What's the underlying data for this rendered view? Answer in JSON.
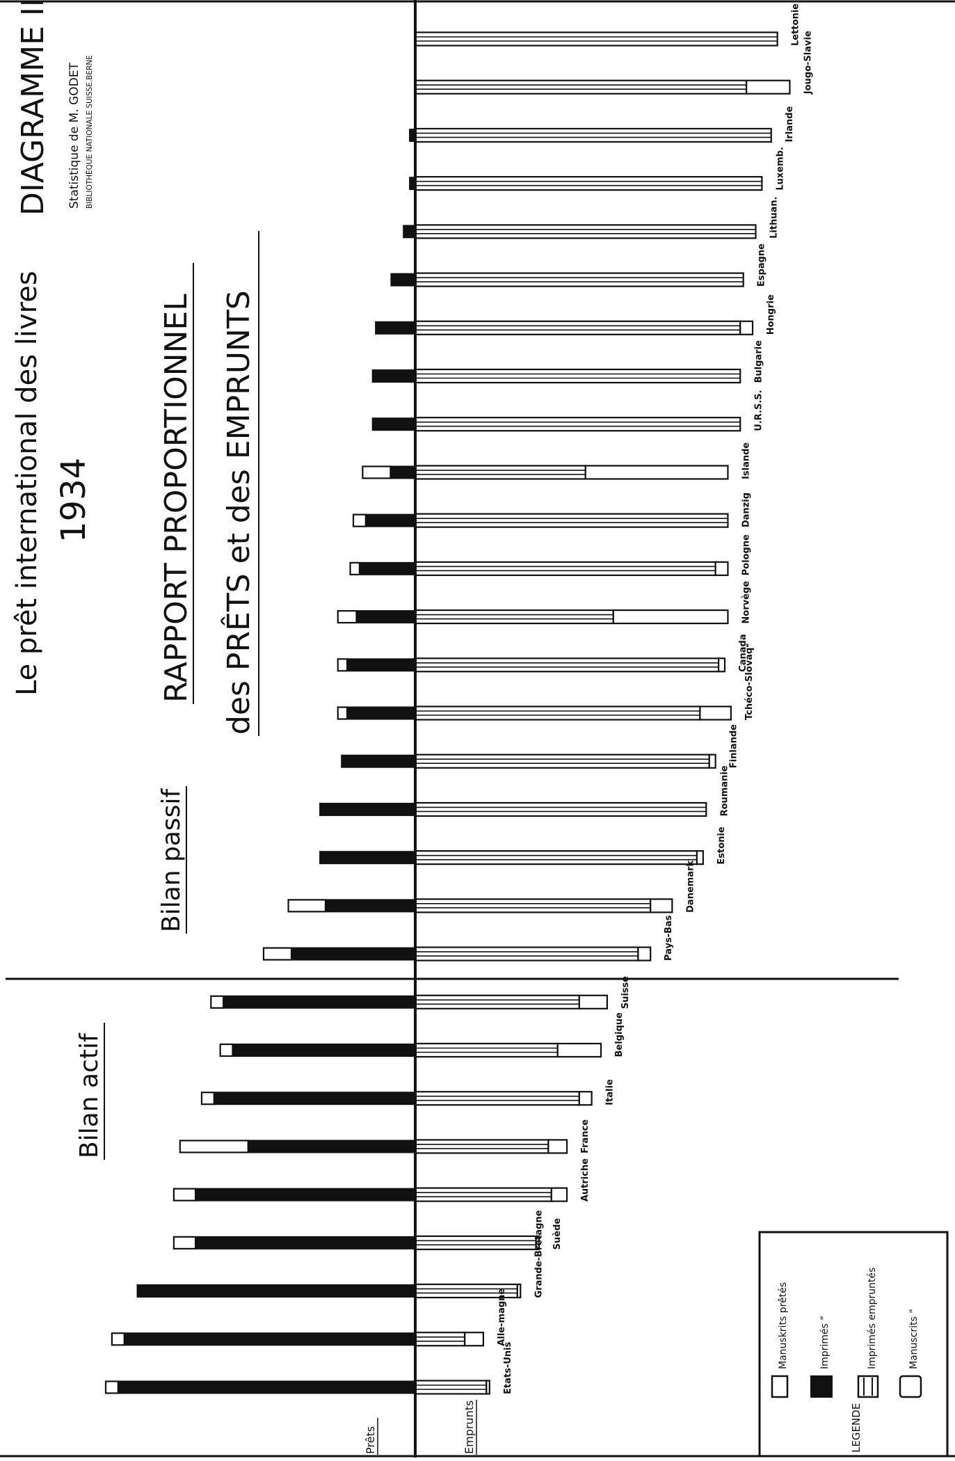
{
  "header": {
    "diagram_label": "DIAGRAMME II",
    "source_line1": "Statistique de M. GODET",
    "source_line2": "BIBLIOTHÈQUE NATIONALE SUISSE.BERNE",
    "title_line1": "Le prêt international des livres",
    "title_year": "1934",
    "subtitle_line1": "RAPPORT PROPORTIONNEL",
    "subtitle_line2": "des PRÊTS et des EMPRUNTS"
  },
  "sections": {
    "active": "Bilan actif",
    "passive": "Bilan passif"
  },
  "axis_labels": {
    "loans": "Prêts",
    "borrowings": "Emprunts"
  },
  "legend": {
    "title": "LEGENDE",
    "items": [
      "Manuskrits prêtés",
      "Imprimés \"",
      "Imprimés empruntés",
      "Manuscrits \""
    ]
  },
  "chart_data": {
    "type": "bar",
    "orientation": "diverging",
    "left_direction": "Prêts",
    "right_direction": "Emprunts",
    "units": "relative proportion (%)",
    "categories": [
      "Etats-Unis",
      "Allemagne",
      "Grande-Bretagne",
      "Suède",
      "Autriche",
      "France",
      "Italie",
      "Belgique",
      "Suisse",
      "Pays-Bas",
      "Danemark",
      "Estonie",
      "Roumanie",
      "Finlande",
      "Tchéco-Slovaquie",
      "Canada",
      "Norvège",
      "Pologne",
      "Danzig",
      "Islande",
      "U.R.S.S.",
      "Bulgarie",
      "Hongrie",
      "Espagne",
      "Lithuanie",
      "Luxembourg",
      "Irlande",
      "Jougo-Slavie",
      "Lettonie"
    ],
    "category_labels": [
      "Etats-Unis",
      "Alle-magne",
      "Grande-Bretagne",
      "Suède",
      "Autriche",
      "France",
      "Italie",
      "Belgique",
      "Suisse",
      "Pays-Bas",
      "Danemark",
      "Estonie",
      "Roumanie",
      "Finlande",
      "Tchéco-Slovaqᵉ",
      "Canada",
      "Norvège",
      "Pologne",
      "Danzig",
      "Islande",
      "U.R.S.S.",
      "Bulgarie",
      "Hongrie",
      "Espagne",
      "Lithuan.",
      "Luxemb.",
      "Irlande",
      "Jougo-Slavie",
      "Lettonie"
    ],
    "groups": [
      {
        "name": "Bilan actif",
        "categories": [
          "Etats-Unis",
          "Allemagne",
          "Grande-Bretagne",
          "Suède",
          "Autriche",
          "France",
          "Italie",
          "Belgique",
          "Suisse"
        ]
      },
      {
        "name": "Bilan passif",
        "categories": [
          "Pays-Bas",
          "Danemark",
          "Estonie",
          "Roumanie",
          "Finlande",
          "Tchéco-Slovaquie",
          "Canada",
          "Norvège",
          "Pologne",
          "Danzig",
          "Islande",
          "U.R.S.S.",
          "Bulgarie",
          "Hongrie",
          "Espagne",
          "Lithuanie",
          "Luxembourg",
          "Irlande",
          "Jougo-Slavie",
          "Lettonie"
        ]
      }
    ],
    "series": [
      {
        "name": "Manuskrits prêtés",
        "side": "Prêts",
        "fill": "white",
        "values": [
          4,
          4,
          0,
          7,
          7,
          22,
          4,
          4,
          4,
          9,
          12,
          0,
          0,
          0,
          3,
          3,
          6,
          3,
          4,
          9,
          0,
          0,
          0,
          0,
          0,
          0,
          0,
          0,
          0
        ]
      },
      {
        "name": "Imprimés prêtés",
        "side": "Prêts",
        "fill": "black",
        "values": [
          96,
          94,
          90,
          71,
          71,
          54,
          65,
          59,
          62,
          40,
          29,
          31,
          31,
          24,
          22,
          22,
          19,
          18,
          16,
          8,
          14,
          14,
          13,
          8,
          4,
          2,
          2,
          0,
          0
        ]
      },
      {
        "name": "Imprimés empruntés",
        "side": "Emprunts",
        "fill": "striped",
        "values": [
          23,
          16,
          33,
          39,
          44,
          43,
          53,
          46,
          53,
          72,
          76,
          91,
          94,
          95,
          92,
          98,
          64,
          97,
          101,
          55,
          105,
          105,
          105,
          106,
          110,
          112,
          115,
          107,
          117
        ]
      },
      {
        "name": "Manuscrits empruntés",
        "side": "Emprunts",
        "fill": "white",
        "values": [
          1,
          6,
          1,
          1,
          5,
          6,
          4,
          14,
          9,
          4,
          7,
          2,
          0,
          2,
          10,
          2,
          37,
          4,
          0,
          46,
          0,
          0,
          4,
          0,
          0,
          0,
          0,
          14,
          0
        ]
      }
    ],
    "xlim": [
      -100,
      120
    ]
  }
}
